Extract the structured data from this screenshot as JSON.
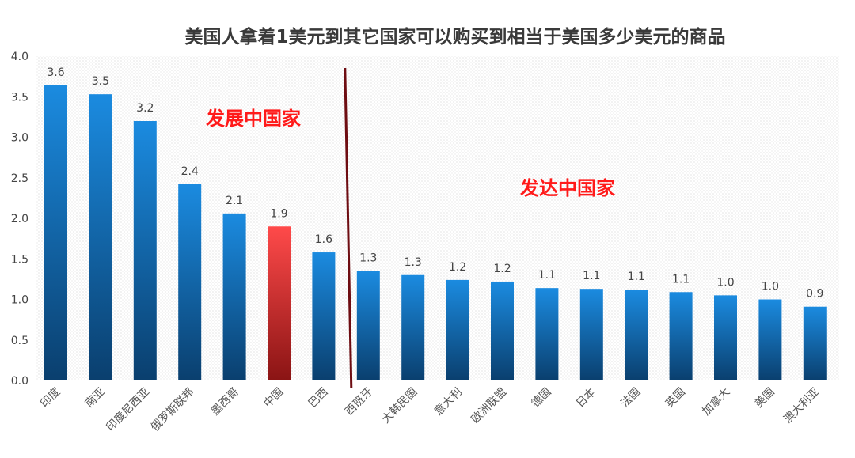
{
  "chart_data": {
    "type": "bar",
    "title": "美国人拿着1美元到其它国家可以购买到相当于美国多少美元的商品",
    "categories": [
      "印度",
      "南亚",
      "印度尼西亚",
      "俄罗斯联邦",
      "墨西哥",
      "中国",
      "巴西",
      "西班牙",
      "大韩民国",
      "意大利",
      "欧洲联盟",
      "德国",
      "日本",
      "法国",
      "英国",
      "加拿大",
      "美国",
      "澳大利亚"
    ],
    "values": [
      3.64,
      3.53,
      3.2,
      2.42,
      2.06,
      1.9,
      1.58,
      1.35,
      1.3,
      1.24,
      1.22,
      1.14,
      1.13,
      1.12,
      1.09,
      1.05,
      1.0,
      0.91
    ],
    "data_labels": [
      "3.6",
      "3.5",
      "3.2",
      "2.4",
      "2.1",
      "1.9",
      "1.6",
      "1.3",
      "1.3",
      "1.2",
      "1.2",
      "1.1",
      "1.1",
      "1.1",
      "1.1",
      "1.0",
      "1.0",
      "0.9"
    ],
    "highlight_category": "中国",
    "ylim": [
      0,
      4.0
    ],
    "yticks": [
      "0.0",
      "0.5",
      "1.0",
      "1.5",
      "2.0",
      "2.5",
      "3.0",
      "3.5",
      "4.0"
    ],
    "grid": false,
    "colors": {
      "bar_top": "#1b8be0",
      "bar_bottom": "#0a3f6e",
      "highlight_top": "#ff4a4a",
      "highlight_bottom": "#8a1414",
      "divider": "#6e0d12",
      "annotation": "#ff1a1a"
    },
    "annotations": {
      "developing": "发展中国家",
      "developed": "发达中国家"
    },
    "divider_after_category": "巴西"
  }
}
